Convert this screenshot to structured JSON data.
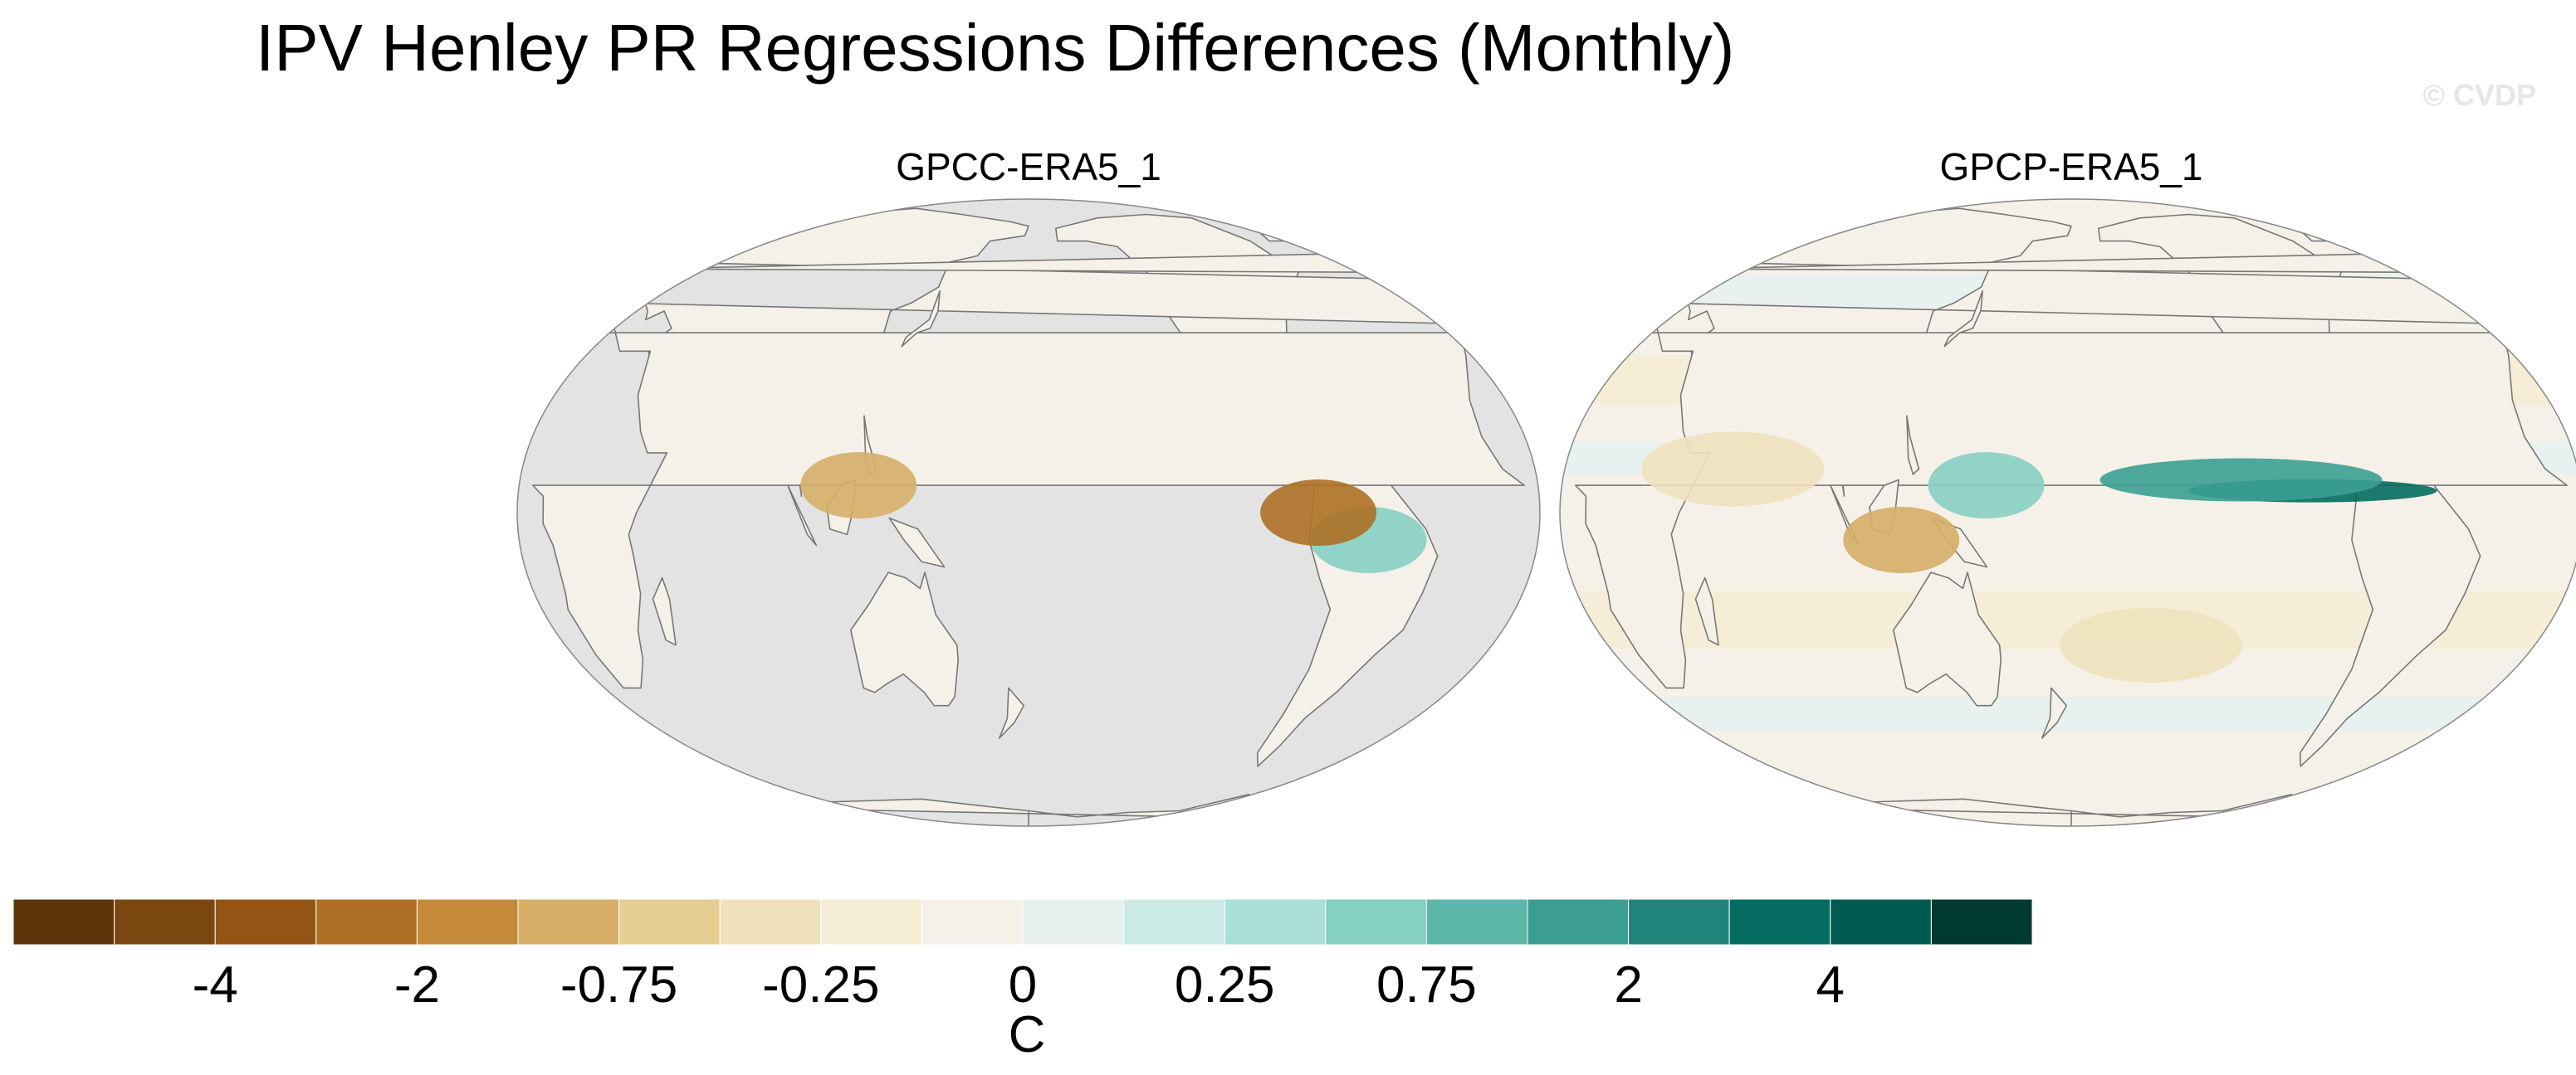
{
  "title": "IPV Henley PR Regressions Differences (Monthly)",
  "watermark": "© CVDP",
  "panels": [
    {
      "label": "GPCC-ERA5_1"
    },
    {
      "label": "GPCP-ERA5_1"
    }
  ],
  "colors": {
    "ocean_missing": "#e3e3e3",
    "coast": "#777777",
    "map_border": "#888888"
  },
  "chart_data": {
    "type": "heatmap",
    "title": "IPV Henley PR Regressions Differences (Monthly)",
    "projection": "Robinson (Pacific-centered)",
    "panels": [
      "GPCC-ERA5_1",
      "GPCP-ERA5_1"
    ],
    "colorbar": {
      "unit": "C",
      "colors": [
        "#5c340a",
        "#7a4710",
        "#945515",
        "#ad7025",
        "#c48a3a",
        "#d6ae68",
        "#e6cd92",
        "#f0e1bd",
        "#f5ecd4",
        "#f5f1e9",
        "#e6f1ef",
        "#cceae5",
        "#abdfd9",
        "#86cfc3",
        "#5cb6a9",
        "#3c9e92",
        "#21847a",
        "#046c60",
        "#015a4f",
        "#003a30"
      ],
      "tick_labels": [
        "-4",
        "-2",
        "-0.75",
        "-0.25",
        "0",
        "0.25",
        "0.75",
        "2",
        "4"
      ],
      "tick_box_index": [
        2,
        4,
        6,
        8,
        10,
        12,
        14,
        16,
        18
      ]
    },
    "anomalies": [
      {
        "panel": 1,
        "lon": -95,
        "lat": 4,
        "value": 4,
        "note": "Eastern Pacific ITCZ positive band"
      },
      {
        "panel": 1,
        "lon": -120,
        "lat": 6,
        "value": 2
      },
      {
        "panel": 1,
        "lon": 150,
        "lat": 5,
        "value": 0.75
      },
      {
        "panel": 1,
        "lon": 120,
        "lat": -5,
        "value": -0.75
      },
      {
        "panel": 1,
        "lon": -150,
        "lat": -25,
        "value": -0.25
      },
      {
        "panel": 1,
        "lon": 60,
        "lat": 8,
        "value": -0.25
      },
      {
        "panel": 0,
        "lon": -60,
        "lat": -5,
        "value": 0.75
      },
      {
        "panel": 0,
        "lon": -78,
        "lat": 0,
        "value": -2
      },
      {
        "panel": 0,
        "lon": 120,
        "lat": 5,
        "value": -0.75
      }
    ]
  }
}
